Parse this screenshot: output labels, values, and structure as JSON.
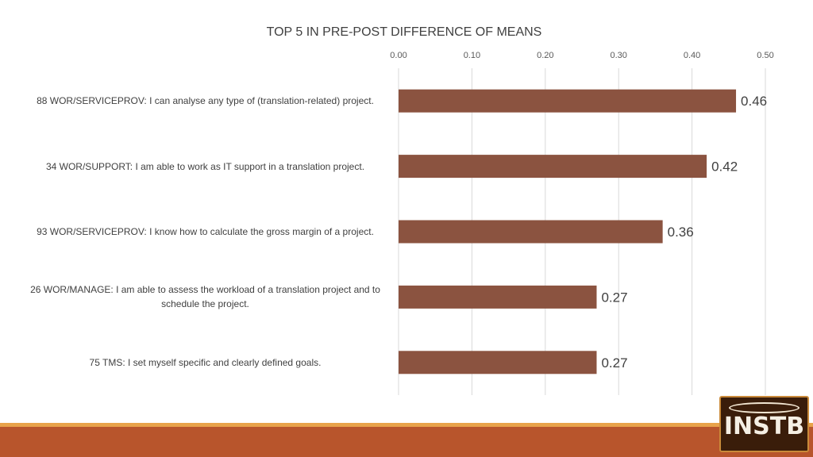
{
  "chart_data": {
    "type": "bar",
    "orientation": "horizontal",
    "title": "TOP 5 IN PRE-POST DIFFERENCE OF MEANS",
    "xlim": [
      0,
      0.5
    ],
    "x_ticks": [
      "0.00",
      "0.10",
      "0.20",
      "0.30",
      "0.40",
      "0.50"
    ],
    "x_tick_values": [
      0,
      0.1,
      0.2,
      0.3,
      0.4,
      0.5
    ],
    "x_axis_position": "top",
    "grid": true,
    "categories": [
      "88 WOR/SERVICEPROV: I can analyse any type of (translation-related) project.",
      "34 WOR/SUPPORT: I am able to work as IT support in a translation project.",
      "93 WOR/SERVICEPROV: I know how to calculate the gross margin of a project.",
      "26 WOR/MANAGE: I am able to assess the workload of a translation project and to schedule the project.",
      "75 TMS: I set myself specific and clearly defined goals."
    ],
    "values": [
      0.46,
      0.42,
      0.36,
      0.27,
      0.27
    ],
    "data_labels": [
      "0.46",
      "0.42",
      "0.36",
      "0.27",
      "0.27"
    ],
    "bar_color": "#8b5340"
  },
  "branding": {
    "logo_text": "INSTB",
    "footer_color": "#b8552c",
    "footer_accent": "#e8a34a"
  }
}
